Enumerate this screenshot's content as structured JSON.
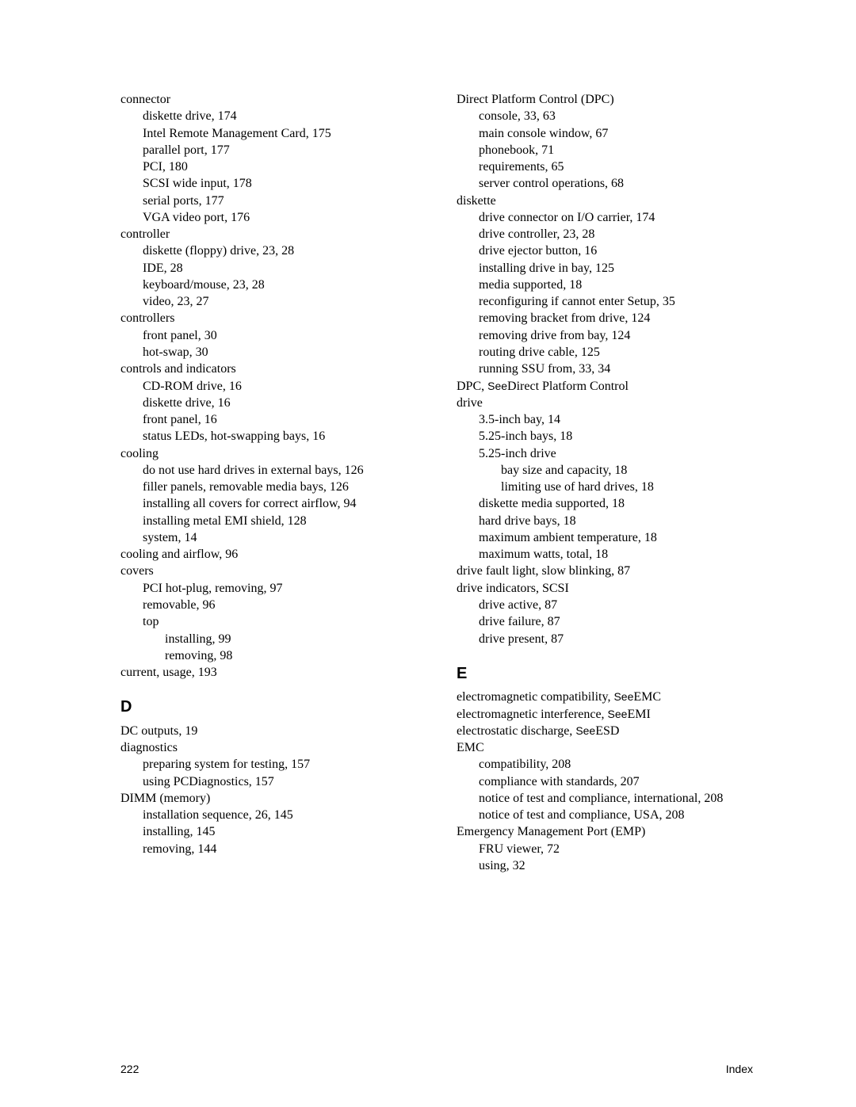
{
  "see_label": "See",
  "col1": [
    {
      "l": 0,
      "t": "connector"
    },
    {
      "l": 1,
      "t": "diskette drive, 174"
    },
    {
      "l": 1,
      "t": "Intel Remote Management Card, 175"
    },
    {
      "l": 1,
      "t": "parallel port, 177"
    },
    {
      "l": 1,
      "t": "PCI, 180"
    },
    {
      "l": 1,
      "t": "SCSI wide input, 178"
    },
    {
      "l": 1,
      "t": "serial ports, 177"
    },
    {
      "l": 1,
      "t": "VGA video port, 176"
    },
    {
      "l": 0,
      "t": "controller"
    },
    {
      "l": 1,
      "t": "diskette (floppy) drive, 23, 28"
    },
    {
      "l": 1,
      "t": "IDE, 28"
    },
    {
      "l": 1,
      "t": "keyboard/mouse, 23, 28"
    },
    {
      "l": 1,
      "t": "video, 23, 27"
    },
    {
      "l": 0,
      "t": "controllers"
    },
    {
      "l": 1,
      "t": "front panel, 30"
    },
    {
      "l": 1,
      "t": "hot-swap, 30"
    },
    {
      "l": 0,
      "t": "controls and indicators"
    },
    {
      "l": 1,
      "t": "CD-ROM drive, 16"
    },
    {
      "l": 1,
      "t": "diskette drive, 16"
    },
    {
      "l": 1,
      "t": "front panel, 16"
    },
    {
      "l": 1,
      "t": "status LEDs, hot-swapping bays, 16"
    },
    {
      "l": 0,
      "t": "cooling"
    },
    {
      "l": 1,
      "t": "do not use hard drives in external bays, 126"
    },
    {
      "l": 1,
      "t": "filler panels, removable media bays, 126"
    },
    {
      "l": 1,
      "t": "installing all covers for correct airflow, 94"
    },
    {
      "l": 1,
      "t": "installing metal EMI shield, 128"
    },
    {
      "l": 1,
      "t": "system, 14"
    },
    {
      "l": 0,
      "t": "cooling and airflow, 96"
    },
    {
      "l": 0,
      "t": "covers"
    },
    {
      "l": 1,
      "t": "PCI hot-plug, removing, 97"
    },
    {
      "l": 1,
      "t": "removable, 96"
    },
    {
      "l": 1,
      "t": "top"
    },
    {
      "l": 2,
      "t": "installing, 99"
    },
    {
      "l": 2,
      "t": "removing, 98"
    },
    {
      "l": 0,
      "t": "current, usage, 193"
    },
    {
      "heading": "D"
    },
    {
      "l": 0,
      "t": "DC outputs, 19"
    },
    {
      "l": 0,
      "t": "diagnostics"
    },
    {
      "l": 1,
      "t": "preparing system for testing, 157"
    },
    {
      "l": 1,
      "t": "using PCDiagnostics, 157"
    },
    {
      "l": 0,
      "t": "DIMM (memory)"
    },
    {
      "l": 1,
      "t": "installation sequence, 26, 145"
    },
    {
      "l": 1,
      "t": "installing, 145"
    },
    {
      "l": 1,
      "t": "removing, 144"
    }
  ],
  "col2": [
    {
      "l": 0,
      "t": "Direct Platform Control (DPC)"
    },
    {
      "l": 1,
      "t": "console, 33, 63"
    },
    {
      "l": 1,
      "t": "main console window, 67"
    },
    {
      "l": 1,
      "t": "phonebook, 71"
    },
    {
      "l": 1,
      "t": "requirements, 65"
    },
    {
      "l": 1,
      "t": "server control operations, 68"
    },
    {
      "l": 0,
      "t": "diskette"
    },
    {
      "l": 1,
      "t": "drive connector on I/O carrier, 174"
    },
    {
      "l": 1,
      "t": "drive controller, 23, 28"
    },
    {
      "l": 1,
      "t": "drive ejector button, 16"
    },
    {
      "l": 1,
      "t": "installing drive in bay, 125"
    },
    {
      "l": 1,
      "t": "media supported, 18"
    },
    {
      "l": 1,
      "t": "reconfiguring if cannot enter Setup, 35"
    },
    {
      "l": 1,
      "t": "removing bracket from drive, 124"
    },
    {
      "l": 1,
      "t": "removing drive from bay, 124"
    },
    {
      "l": 1,
      "t": "routing drive cable, 125"
    },
    {
      "l": 1,
      "t": "running SSU from, 33, 34"
    },
    {
      "l": 0,
      "pre": "DPC, ",
      "see": true,
      "post": "Direct Platform Control"
    },
    {
      "l": 0,
      "t": "drive"
    },
    {
      "l": 1,
      "t": "3.5-inch bay, 14"
    },
    {
      "l": 1,
      "t": "5.25-inch bays, 18"
    },
    {
      "l": 1,
      "t": "5.25-inch drive"
    },
    {
      "l": 2,
      "t": "bay size and capacity, 18"
    },
    {
      "l": 2,
      "t": "limiting use of hard drives, 18"
    },
    {
      "l": 1,
      "t": "diskette media supported, 18"
    },
    {
      "l": 1,
      "t": "hard drive bays, 18"
    },
    {
      "l": 1,
      "t": "maximum ambient temperature, 18"
    },
    {
      "l": 1,
      "t": "maximum watts, total, 18"
    },
    {
      "l": 0,
      "t": "drive fault light, slow blinking, 87"
    },
    {
      "l": 0,
      "t": "drive indicators, SCSI"
    },
    {
      "l": 1,
      "t": "drive active, 87"
    },
    {
      "l": 1,
      "t": "drive failure, 87"
    },
    {
      "l": 1,
      "t": "drive present, 87"
    },
    {
      "heading": "E"
    },
    {
      "l": 0,
      "pre": "electromagnetic compatibility, ",
      "see": true,
      "post": "EMC"
    },
    {
      "l": 0,
      "pre": "electromagnetic interference, ",
      "see": true,
      "post": "EMI"
    },
    {
      "l": 0,
      "pre": "electrostatic discharge, ",
      "see": true,
      "post": "ESD"
    },
    {
      "l": 0,
      "t": "EMC"
    },
    {
      "l": 1,
      "t": "compatibility, 208"
    },
    {
      "l": 1,
      "t": "compliance with standards, 207"
    },
    {
      "l": 1,
      "t": "notice of test and compliance, international, 208"
    },
    {
      "l": 1,
      "t": "notice of test and compliance, USA, 208"
    },
    {
      "l": 0,
      "t": "Emergency Management Port (EMP)"
    },
    {
      "l": 1,
      "t": "FRU viewer, 72"
    },
    {
      "l": 1,
      "t": "using, 32"
    }
  ],
  "footer": {
    "page_number": "222",
    "section": "Index"
  }
}
